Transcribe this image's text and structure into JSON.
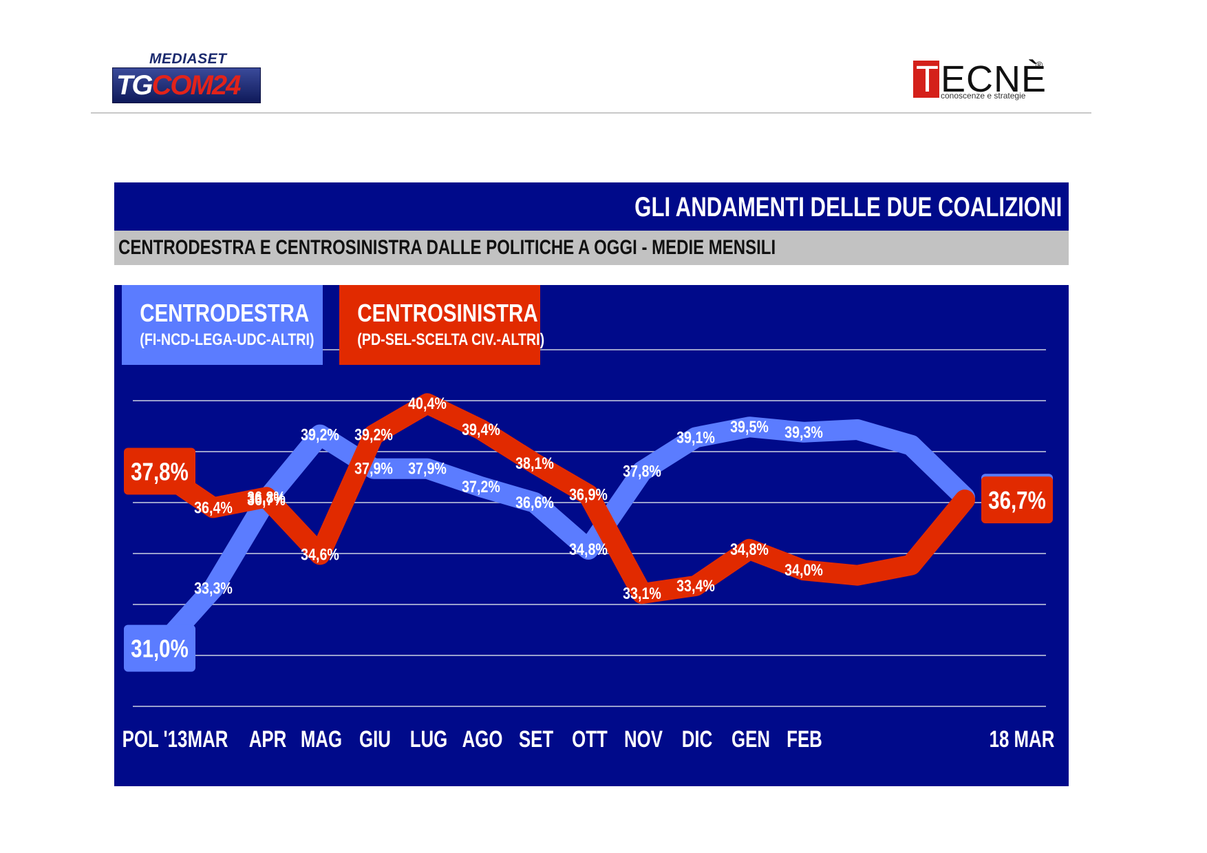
{
  "header": {
    "logo_left_small": "MEDIASET",
    "logo_left_main_a": "TG",
    "logo_left_main_b": "COM24",
    "logo_right_t": "T",
    "logo_right_rest": "ECNÈ",
    "logo_right_reg": "®",
    "logo_right_tag": "conoscenze e strategie"
  },
  "chart_data": {
    "type": "line",
    "title": "GLI ANDAMENTI DELLE DUE COALIZIONI",
    "subtitle": "CENTRODESTRA E CENTROSINISTRA DALLE POLITICHE A OGGI - MEDIE MENSILI",
    "categories": [
      "POL '13",
      "MAR",
      "APR",
      "MAG",
      "GIU",
      "LUG",
      "AGO",
      "SET",
      "OTT",
      "NOV",
      "DIC",
      "GEN",
      "FEB",
      "",
      "",
      "18 MAR"
    ],
    "ylim": [
      28.9,
      42.6
    ],
    "grid": true,
    "legend_placement": "top-left",
    "series": [
      {
        "name": "CENTRODESTRA",
        "detail": "(FI-NCD-LEGA-UDC-ALTRI)",
        "color": "#5b7cff",
        "values": [
          31.0,
          33.3,
          36.7,
          39.2,
          37.9,
          37.9,
          37.2,
          36.6,
          34.8,
          37.8,
          39.1,
          39.5,
          39.3,
          39.4,
          38.8,
          36.8
        ],
        "labels": [
          "31,0%",
          "33,3%",
          "36,7%",
          "39,2%",
          "37,9%",
          "37,9%",
          "37,2%",
          "36,6%",
          "34,8%",
          "37,8%",
          "39,1%",
          "39,5%",
          "39,3%",
          "",
          "",
          "36,8%"
        ]
      },
      {
        "name": "CENTROSINISTRA",
        "detail": "(PD-SEL-SCELTA CIV.-ALTRI)",
        "color": "#e12a00",
        "values": [
          37.8,
          36.4,
          36.8,
          34.6,
          39.2,
          40.4,
          39.4,
          38.1,
          36.9,
          33.1,
          33.4,
          34.8,
          34.0,
          33.8,
          34.2,
          36.7
        ],
        "labels": [
          "37,8%",
          "36,4%",
          "36,8%",
          "34,6%",
          "39,2%",
          "40,4%",
          "39,4%",
          "38,1%",
          "36,9%",
          "33,1%",
          "33,4%",
          "34,8%",
          "34,0%",
          "",
          "",
          "36,7%"
        ]
      }
    ]
  }
}
